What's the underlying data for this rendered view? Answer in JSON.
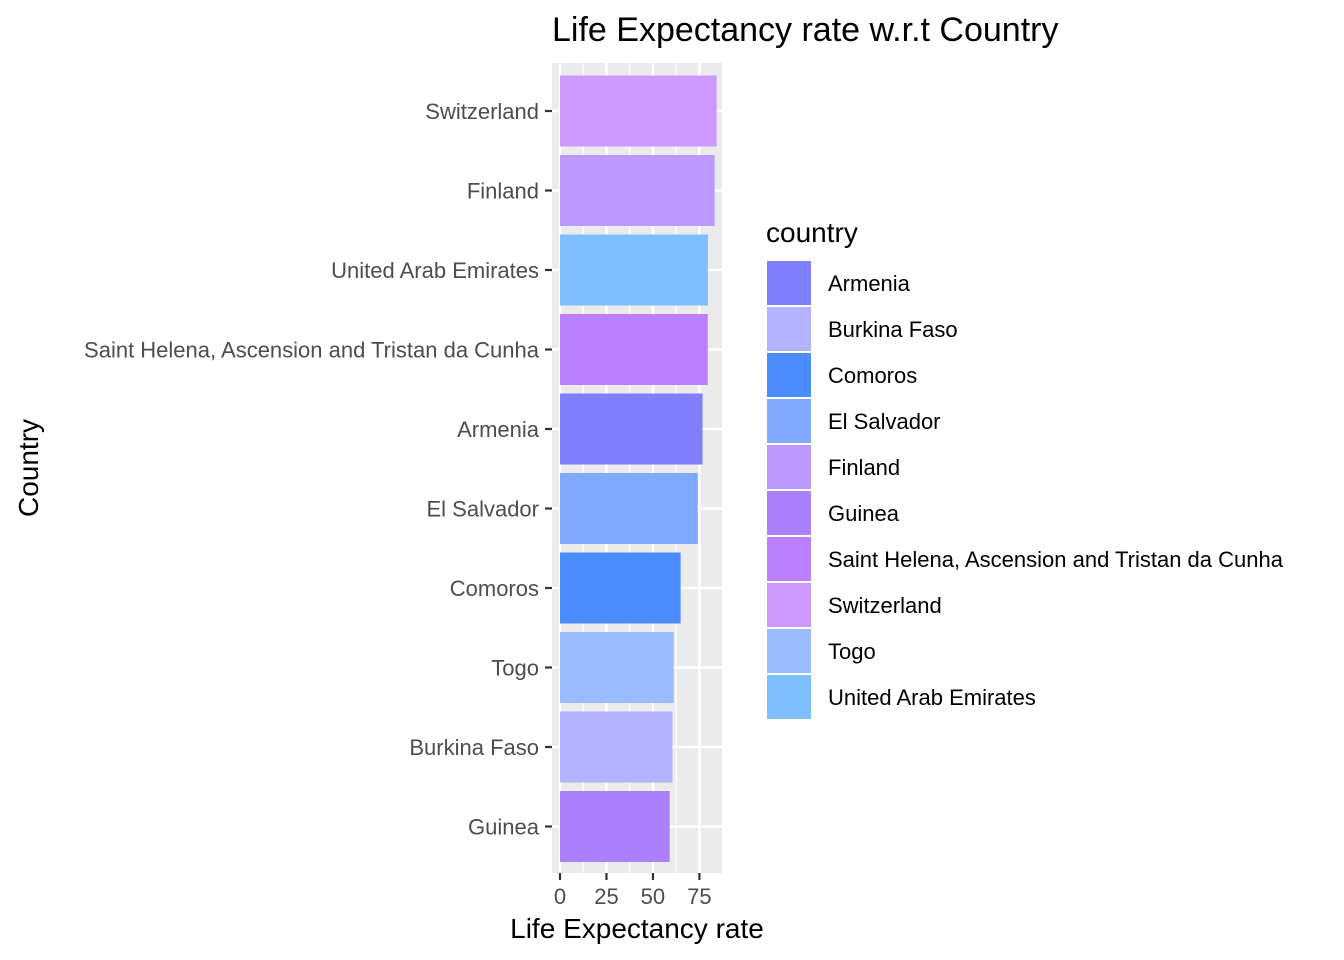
{
  "chart_data": {
    "type": "bar",
    "orientation": "horizontal",
    "title": "Life Expectancy rate w.r.t Country",
    "xlabel": "Life Expectancy rate",
    "ylabel": "Country",
    "xlim": [
      0,
      87
    ],
    "x_ticks": [
      0,
      25,
      50,
      75
    ],
    "grid": true,
    "legend_title": "country",
    "legend_position": "right",
    "categories": [
      "Switzerland",
      "Finland",
      "United Arab Emirates",
      "Saint Helena, Ascension and Tristan da Cunha",
      "Armenia",
      "El Salvador",
      "Comoros",
      "Togo",
      "Burkina Faso",
      "Guinea"
    ],
    "values": [
      84.3,
      83.2,
      79.6,
      79.5,
      76.7,
      74.1,
      64.9,
      61.2,
      60.5,
      59.0
    ],
    "colors": [
      "#CC99FF",
      "#BB99FF",
      "#80BFFF",
      "#BB80FF",
      "#8080FF",
      "#80AAFF",
      "#4D8CFF",
      "#99BBFF",
      "#B3B3FF",
      "#AA80FF"
    ],
    "legend": [
      {
        "label": "Armenia",
        "color": "#8080FF"
      },
      {
        "label": "Burkina Faso",
        "color": "#B3B3FF"
      },
      {
        "label": "Comoros",
        "color": "#4D8CFF"
      },
      {
        "label": "El Salvador",
        "color": "#80AAFF"
      },
      {
        "label": "Finland",
        "color": "#BB99FF"
      },
      {
        "label": "Guinea",
        "color": "#AA80FF"
      },
      {
        "label": "Saint Helena, Ascension and Tristan da Cunha",
        "color": "#BB80FF"
      },
      {
        "label": "Switzerland",
        "color": "#CC99FF"
      },
      {
        "label": "Togo",
        "color": "#99BBFF"
      },
      {
        "label": "United Arab Emirates",
        "color": "#80BFFF"
      }
    ]
  }
}
